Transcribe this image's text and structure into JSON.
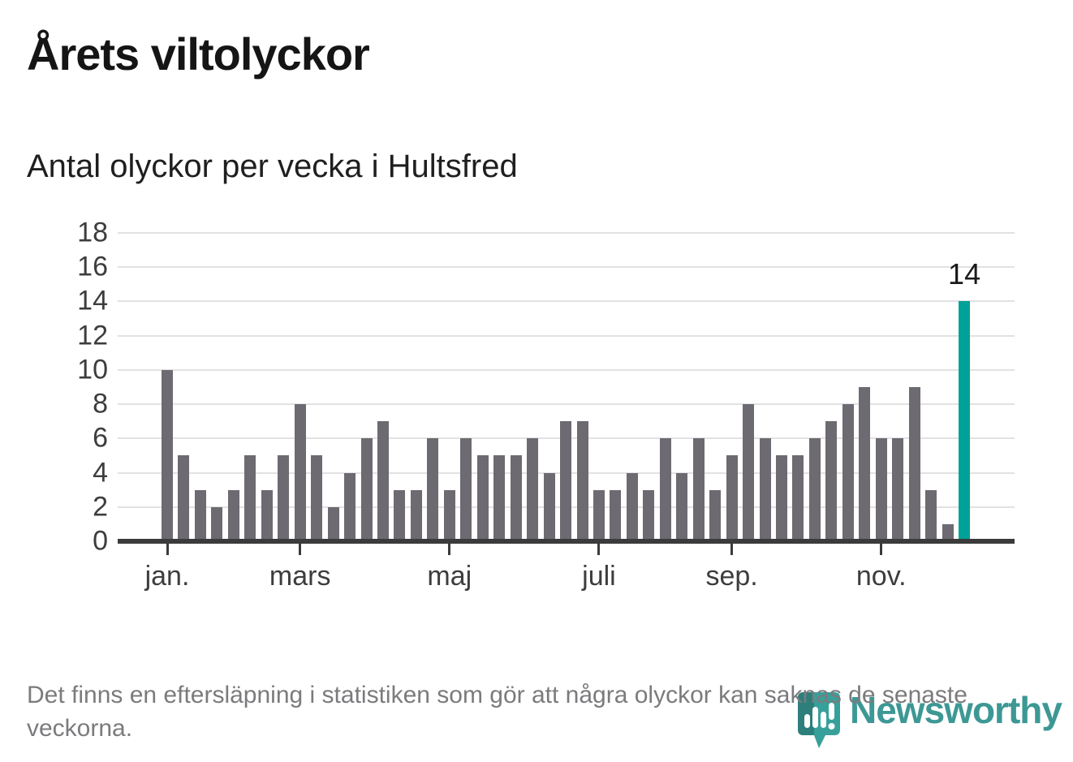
{
  "title": "Årets viltolyckor",
  "subtitle": "Antal olyckor per vecka i Hultsfred",
  "footnote": "Det finns en eftersläpning i statistiken som gör att några olyckor kan saknas de senaste veckorna.",
  "logo": {
    "brand": "Newsworthy",
    "mark_icon": "newsworthy-pin-barchart-icon"
  },
  "colors": {
    "bar": "#6d6a72",
    "highlight": "#00a198",
    "gridline": "#e2e2e2",
    "axis": "#3b3b3b",
    "tick_label": "#3d3d3d",
    "annotation_text": "#1a1a1a",
    "footnote_text": "#7b7b7e",
    "logo_teal": "#2d908d",
    "logo_mark_teal": "#38a09a",
    "logo_mark_teal_dark": "#2c7f7b"
  },
  "chart_data": {
    "type": "bar",
    "title": "Årets viltolyckor",
    "subtitle": "Antal olyckor per vecka i Hultsfred",
    "x_unit": "week",
    "categories": [
      1,
      2,
      3,
      4,
      5,
      6,
      7,
      8,
      9,
      10,
      11,
      12,
      13,
      14,
      15,
      16,
      17,
      18,
      19,
      20,
      21,
      22,
      23,
      24,
      25,
      26,
      27,
      28,
      29,
      30,
      31,
      32,
      33,
      34,
      35,
      36,
      37,
      38,
      39,
      40,
      41,
      42,
      43,
      44,
      45,
      46,
      47,
      48,
      49
    ],
    "values": [
      10,
      5,
      3,
      2,
      3,
      5,
      3,
      5,
      8,
      5,
      2,
      4,
      6,
      7,
      3,
      3,
      6,
      3,
      6,
      5,
      5,
      5,
      6,
      4,
      7,
      7,
      3,
      3,
      4,
      3,
      6,
      4,
      6,
      3,
      5,
      8,
      6,
      5,
      5,
      6,
      7,
      8,
      9,
      6,
      6,
      9,
      3,
      1,
      14
    ],
    "highlighted_week": 49,
    "annotation": {
      "text": "14",
      "week": 49
    },
    "xlabel": "",
    "ylabel": "",
    "ylim": [
      0,
      18
    ],
    "yticks": [
      0,
      2,
      4,
      6,
      8,
      10,
      12,
      14,
      16,
      18
    ],
    "xticks": [
      {
        "week": 1,
        "label": "jan."
      },
      {
        "week": 9,
        "label": "mars"
      },
      {
        "week": 18,
        "label": "maj"
      },
      {
        "week": 27,
        "label": "juli"
      },
      {
        "week": 35,
        "label": "sep."
      },
      {
        "week": 44,
        "label": "nov."
      }
    ],
    "grid": "horizontal",
    "legend": "none"
  }
}
